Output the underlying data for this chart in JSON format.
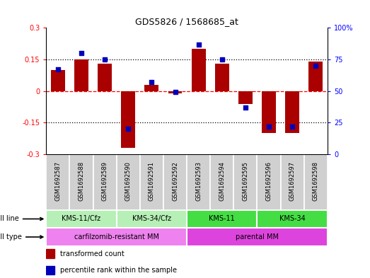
{
  "title": "GDS5826 / 1568685_at",
  "samples": [
    "GSM1692587",
    "GSM1692588",
    "GSM1692589",
    "GSM1692590",
    "GSM1692591",
    "GSM1692592",
    "GSM1692593",
    "GSM1692594",
    "GSM1692595",
    "GSM1692596",
    "GSM1692597",
    "GSM1692598"
  ],
  "transformed_count": [
    0.1,
    0.15,
    0.13,
    -0.27,
    0.03,
    -0.01,
    0.2,
    0.13,
    -0.06,
    -0.2,
    -0.2,
    0.14
  ],
  "percentile_rank": [
    67,
    80,
    75,
    20,
    57,
    49,
    87,
    75,
    37,
    22,
    22,
    70
  ],
  "cell_lines": [
    {
      "label": "KMS-11/Cfz",
      "start": 0,
      "end": 3,
      "color": "#b6f0b6"
    },
    {
      "label": "KMS-34/Cfz",
      "start": 3,
      "end": 6,
      "color": "#b6f0b6"
    },
    {
      "label": "KMS-11",
      "start": 6,
      "end": 9,
      "color": "#44dd44"
    },
    {
      "label": "KMS-34",
      "start": 9,
      "end": 12,
      "color": "#44dd44"
    }
  ],
  "cell_types": [
    {
      "label": "carfilzomib-resistant MM",
      "start": 0,
      "end": 6,
      "color": "#ee82ee"
    },
    {
      "label": "parental MM",
      "start": 6,
      "end": 12,
      "color": "#dd44dd"
    }
  ],
  "bar_color": "#aa0000",
  "dot_color": "#0000bb",
  "ylim_left": [
    -0.3,
    0.3
  ],
  "ylim_right": [
    0,
    100
  ],
  "yticks_left": [
    -0.3,
    -0.15,
    0.0,
    0.15,
    0.3
  ],
  "ytick_labels_left": [
    "-0.3",
    "-0.15",
    "0",
    "0.15",
    "0.3"
  ],
  "yticks_right": [
    0,
    25,
    50,
    75,
    100
  ],
  "ytick_labels_right": [
    "0",
    "25",
    "50",
    "75",
    "100%"
  ],
  "gsm_bg_color": "#d0d0d0",
  "gsm_border_color": "#ffffff"
}
